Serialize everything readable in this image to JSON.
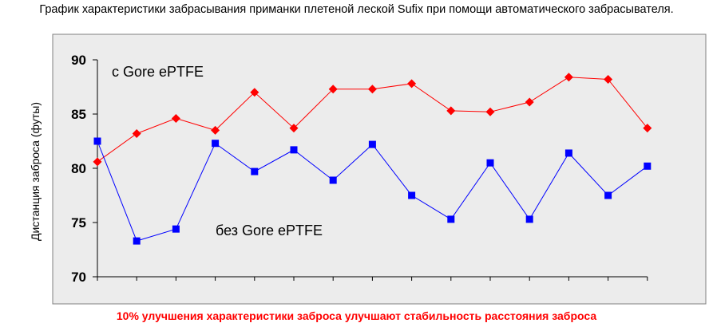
{
  "title": "График  характеристики забрасывания приманки плетеной леской Sufix при помощи  автоматического забрасывателя.",
  "footnote": "10% улучшения характеристики заброса улучшают стабильность расстояния заброса",
  "chart_data": {
    "type": "line",
    "title": "График  характеристики забрасывания приманки плетеной леской Sufix при помощи  автоматического забрасывателя.",
    "xlabel": "",
    "ylabel": "Дистанция заброса (футы)",
    "ylim": [
      70,
      90
    ],
    "yticks": [
      70,
      75,
      80,
      85,
      90
    ],
    "grid": false,
    "x": [
      1,
      2,
      3,
      4,
      5,
      6,
      7,
      8,
      9,
      10,
      11,
      12,
      13,
      14,
      15
    ],
    "series": [
      {
        "name": "с Gore ePTFE",
        "color": "#ff0000",
        "marker": "diamond",
        "values": [
          80.6,
          83.2,
          84.6,
          83.5,
          87.0,
          83.7,
          87.3,
          87.3,
          87.8,
          85.3,
          85.2,
          86.1,
          88.4,
          88.2,
          83.7
        ]
      },
      {
        "name": "без Gore ePTFE",
        "color": "#0000ff",
        "marker": "square",
        "values": [
          82.5,
          73.3,
          74.4,
          82.3,
          79.7,
          81.7,
          78.9,
          82.2,
          77.5,
          75.3,
          80.5,
          75.3,
          81.4,
          77.5,
          80.2
        ]
      }
    ],
    "colors": {
      "plot_background": "#ececec",
      "frame": "#808080"
    }
  }
}
